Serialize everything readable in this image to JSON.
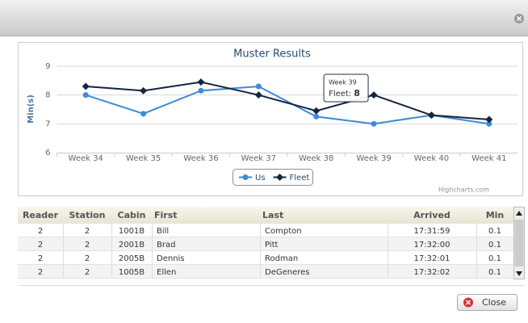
{
  "chart_data": {
    "type": "line",
    "title": "Muster Results",
    "y_label": "Min(s)",
    "categories": [
      "Week 34",
      "Week 35",
      "Week 36",
      "Week 37",
      "Week 38",
      "Week 39",
      "Week 40",
      "Week 41"
    ],
    "series": [
      {
        "name": "Us",
        "color": "#3d8ad8",
        "values": [
          8.0,
          7.35,
          8.15,
          8.3,
          7.25,
          7.0,
          7.3,
          7.0
        ]
      },
      {
        "name": "Fleet",
        "color": "#14253f",
        "values": [
          8.3,
          8.15,
          8.45,
          8.0,
          7.45,
          8.0,
          7.3,
          7.15
        ]
      }
    ],
    "ylim": [
      6,
      9
    ],
    "yticks": [
      6,
      7,
      8,
      9
    ],
    "grid": true,
    "legend": "bottom",
    "tooltip": {
      "title": "Week 39",
      "label": "Fleet:",
      "value": 8
    },
    "credit": "Highcharts.com"
  },
  "table": {
    "columns": [
      "Reader",
      "Station",
      "Cabin",
      "First",
      "Last",
      "Arrived",
      "Min"
    ],
    "rows": [
      [
        "2",
        "2",
        "1001B",
        "Bill",
        "Compton",
        "17:31:59",
        "0.1"
      ],
      [
        "2",
        "2",
        "2001B",
        "Brad",
        "Pitt",
        "17:32:00",
        "0.1"
      ],
      [
        "2",
        "2",
        "2005B",
        "Dennis",
        "Rodman",
        "17:32:01",
        "0.1"
      ],
      [
        "2",
        "2",
        "1005B",
        "Ellen",
        "DeGeneres",
        "17:32:02",
        "0.1"
      ]
    ]
  },
  "button": "Close"
}
